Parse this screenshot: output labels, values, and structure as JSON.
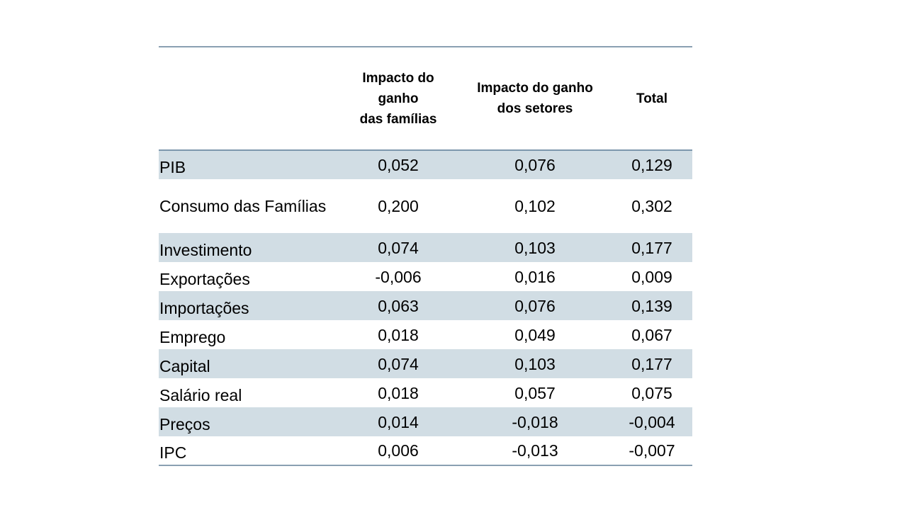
{
  "table": {
    "headers": [
      {
        "lines": [
          ""
        ]
      },
      {
        "lines": [
          "Impacto do",
          "ganho",
          "das famílias"
        ]
      },
      {
        "lines": [
          "Impacto do ganho",
          "dos setores"
        ]
      },
      {
        "lines": [
          "Total"
        ]
      }
    ],
    "rows": [
      {
        "label": "PIB",
        "values": [
          "0,052",
          "0,076",
          "0,129"
        ]
      },
      {
        "label": "Consumo das Famílias",
        "values": [
          "0,200",
          "0,102",
          "0,302"
        ]
      },
      {
        "label": "Investimento",
        "values": [
          "0,074",
          "0,103",
          "0,177"
        ]
      },
      {
        "label": "Exportações",
        "values": [
          "-0,006",
          "0,016",
          "0,009"
        ]
      },
      {
        "label": "Importações",
        "values": [
          "0,063",
          "0,076",
          "0,139"
        ]
      },
      {
        "label": "Emprego",
        "values": [
          "0,018",
          "0,049",
          "0,067"
        ]
      },
      {
        "label": "Capital",
        "values": [
          "0,074",
          "0,103",
          "0,177"
        ]
      },
      {
        "label": "Salário real",
        "values": [
          "0,018",
          "0,057",
          "0,075"
        ]
      },
      {
        "label": "Preços",
        "values": [
          "0,014",
          "-0,018",
          "-0,004"
        ]
      },
      {
        "label": "IPC",
        "values": [
          "0,006",
          "-0,013",
          "-0,007"
        ]
      }
    ]
  },
  "colors": {
    "band": "#d1dde4",
    "rule": "#8aa0b2"
  }
}
